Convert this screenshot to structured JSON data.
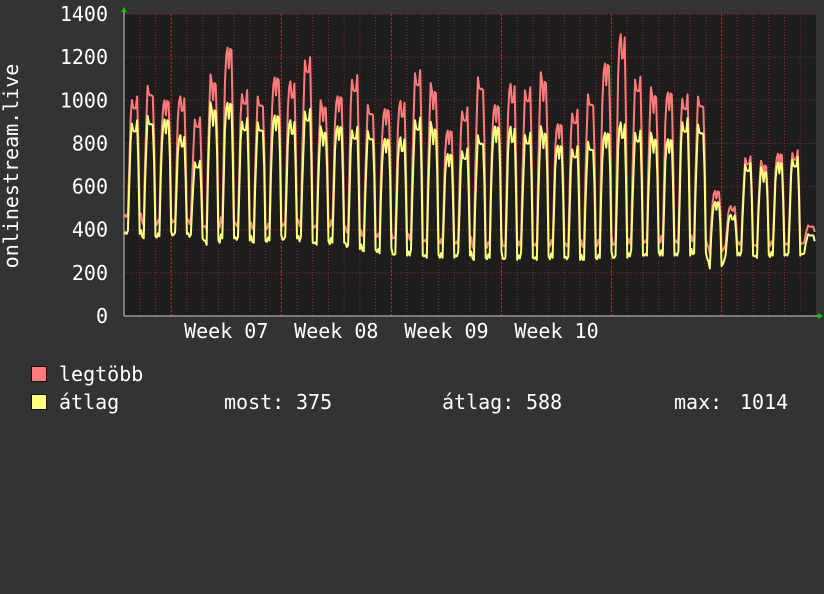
{
  "chart_data": {
    "type": "line",
    "ylabel": "onlinestream.live",
    "ylim": [
      0,
      1400
    ],
    "yticks": [
      "0",
      "200",
      "400",
      "600",
      "800",
      "1000",
      "1200",
      "1400"
    ],
    "xticks": [
      "Week 07",
      "Week 08",
      "Week 09",
      "Week 10"
    ],
    "grid": true,
    "legend": "bottom-left",
    "days": 44,
    "series": [
      {
        "name": "legtöbb",
        "color": "#ff7b7b",
        "daily_max": [
          1020,
          1070,
          1020,
          1020,
          920,
          1120,
          1260,
          1050,
          1020,
          1130,
          1090,
          1200,
          1000,
          1030,
          1120,
          980,
          980,
          1000,
          1140,
          1080,
          870,
          970,
          1110,
          1000,
          1080,
          1060,
          1130,
          900,
          960,
          1030,
          1200,
          1310,
          1110,
          1060,
          1050,
          1030,
          1020,
          590,
          510,
          740,
          720,
          760,
          770,
          420
        ],
        "daily_min": [
          460,
          420,
          430,
          440,
          420,
          400,
          430,
          410,
          400,
          410,
          430,
          410,
          410,
          420,
          370,
          370,
          360,
          360,
          350,
          340,
          330,
          340,
          310,
          330,
          320,
          330,
          320,
          330,
          320,
          320,
          330,
          330,
          340,
          340,
          340,
          340,
          350,
          290,
          330,
          330,
          320,
          330,
          330,
          340
        ]
      },
      {
        "name": "átlag",
        "color": "#ffff80",
        "daily_max": [
          910,
          930,
          930,
          840,
          720,
          990,
          1000,
          920,
          900,
          950,
          910,
          960,
          880,
          890,
          880,
          860,
          840,
          830,
          920,
          900,
          760,
          780,
          840,
          900,
          880,
          850,
          880,
          800,
          790,
          810,
          870,
          900,
          860,
          850,
          830,
          920,
          890,
          540,
          470,
          710,
          690,
          720,
          740,
          380
        ],
        "daily_min": [
          380,
          360,
          370,
          380,
          360,
          330,
          360,
          350,
          340,
          350,
          360,
          340,
          330,
          340,
          310,
          300,
          290,
          280,
          280,
          270,
          270,
          280,
          260,
          270,
          260,
          270,
          260,
          270,
          260,
          260,
          270,
          270,
          280,
          280,
          280,
          280,
          290,
          220,
          280,
          280,
          270,
          280,
          280,
          290
        ]
      }
    ],
    "stats": {
      "current_label": "most:",
      "current_value": "375",
      "average_label": "átlag:",
      "average_value": "588",
      "max_label": "max:",
      "max_value": "1014"
    }
  },
  "colors": {
    "background": "#333333",
    "plot_area": "#1d1d1d",
    "grid": "#8a2a2a",
    "axis": "#cccccc",
    "arrow": "#00cc00"
  }
}
